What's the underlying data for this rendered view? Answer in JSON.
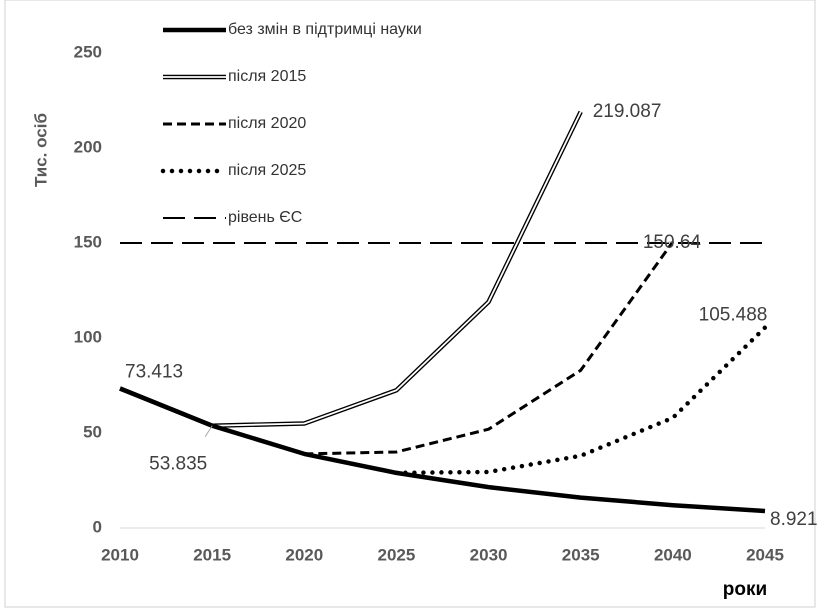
{
  "chart_data": {
    "type": "line",
    "y_label": "Тис. осіб",
    "x_label": "роки",
    "x": [
      2010,
      2015,
      2020,
      2025,
      2030,
      2035,
      2040,
      2045
    ],
    "xlim": [
      2010,
      2045
    ],
    "xticks": [
      2010,
      2015,
      2020,
      2025,
      2030,
      2035,
      2040,
      2045
    ],
    "ylim": [
      0,
      250
    ],
    "yticks": [
      0,
      50,
      100,
      150,
      200,
      250
    ],
    "series": [
      {
        "name": "без змін в підтримці науки",
        "color": "#000000",
        "style": "solid",
        "values": [
          73.413,
          53.835,
          39,
          29,
          21.5,
          16,
          12,
          8.921
        ]
      },
      {
        "name": "після 2015",
        "color": "#000000",
        "style": "double",
        "values": [
          73.413,
          53.835,
          55,
          72.5,
          119,
          219.087,
          null,
          null
        ]
      },
      {
        "name": "після 2020",
        "color": "#000000",
        "style": "dashed",
        "values": [
          null,
          null,
          39,
          40,
          52,
          83,
          150.64,
          null
        ]
      },
      {
        "name": "після 2025",
        "color": "#000000",
        "style": "dotted",
        "values": [
          null,
          null,
          null,
          29,
          29.5,
          38,
          58,
          105.488
        ]
      },
      {
        "name": "рівень ЄС",
        "color": "#000000",
        "style": "longdash",
        "values": [
          150,
          150,
          150,
          150,
          150,
          150,
          150,
          150
        ]
      }
    ]
  }
}
